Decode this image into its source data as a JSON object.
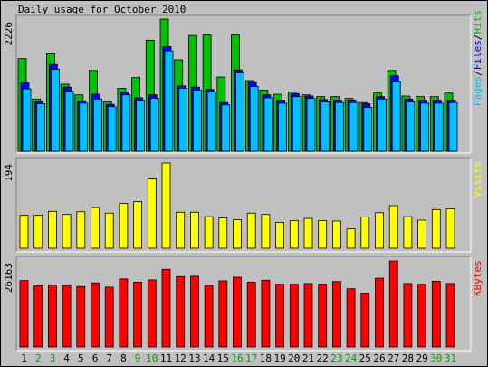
{
  "title": "Daily usage for October 2010",
  "colors": {
    "background": "#c0c0c0",
    "hits": "#00c000",
    "files": "#0000ff",
    "pages": "#00c0ff",
    "visits": "#ffff00",
    "kbytes": "#ff0000",
    "weekend_day": "#00a000"
  },
  "chart_data": [
    {
      "type": "bar",
      "name": "hits-files-pages",
      "y_tick": "2226",
      "ymax": 2226,
      "legend": [
        {
          "label": "Pages",
          "color": "#00c0ff"
        },
        {
          "label": "Files",
          "color": "#0000ff"
        },
        {
          "label": "Hits",
          "color": "#00c000"
        }
      ],
      "categories": [
        "1",
        "2",
        "3",
        "4",
        "5",
        "6",
        "7",
        "8",
        "9",
        "10",
        "11",
        "12",
        "13",
        "14",
        "15",
        "16",
        "17",
        "18",
        "19",
        "20",
        "21",
        "22",
        "23",
        "24",
        "25",
        "26",
        "27",
        "28",
        "29",
        "30",
        "31"
      ],
      "series": [
        {
          "name": "Hits",
          "values": [
            1560,
            880,
            1640,
            1130,
            950,
            1360,
            830,
            1060,
            1240,
            1870,
            2226,
            1540,
            1950,
            1960,
            1250,
            1960,
            1190,
            1030,
            960,
            1000,
            950,
            920,
            920,
            890,
            820,
            980,
            1360,
            930,
            920,
            920,
            980
          ]
        },
        {
          "name": "Files",
          "values": [
            1150,
            840,
            1460,
            1080,
            850,
            960,
            790,
            1000,
            900,
            950,
            1760,
            1100,
            1080,
            1040,
            820,
            1370,
            1170,
            950,
            860,
            970,
            930,
            870,
            860,
            860,
            800,
            920,
            1270,
            880,
            860,
            860,
            860
          ]
        },
        {
          "name": "Pages",
          "values": [
            1050,
            800,
            1380,
            1010,
            810,
            880,
            750,
            950,
            860,
            890,
            1690,
            1060,
            1030,
            1000,
            780,
            1320,
            1090,
            900,
            810,
            920,
            890,
            830,
            820,
            820,
            740,
            880,
            1180,
            830,
            810,
            810,
            820
          ]
        }
      ]
    },
    {
      "type": "bar",
      "name": "visits",
      "y_tick": "194",
      "ymax": 194,
      "legend": [
        {
          "label": "Visits",
          "color": "#ffff00"
        }
      ],
      "categories": [
        "1",
        "2",
        "3",
        "4",
        "5",
        "6",
        "7",
        "8",
        "9",
        "10",
        "11",
        "12",
        "13",
        "14",
        "15",
        "16",
        "17",
        "18",
        "19",
        "20",
        "21",
        "22",
        "23",
        "24",
        "25",
        "26",
        "27",
        "28",
        "29",
        "30",
        "31"
      ],
      "series": [
        {
          "name": "Visits",
          "values": [
            75,
            75,
            84,
            77,
            83,
            93,
            80,
            102,
            106,
            160,
            194,
            82,
            82,
            72,
            69,
            65,
            80,
            77,
            59,
            63,
            68,
            63,
            62,
            44,
            71,
            81,
            97,
            72,
            64,
            88,
            90
          ]
        }
      ]
    },
    {
      "type": "bar",
      "name": "kbytes",
      "y_tick": "26163",
      "ymax": 26163,
      "legend": [
        {
          "label": "KBytes",
          "color": "#ff0000"
        }
      ],
      "categories": [
        "1",
        "2",
        "3",
        "4",
        "5",
        "6",
        "7",
        "8",
        "9",
        "10",
        "11",
        "12",
        "13",
        "14",
        "15",
        "16",
        "17",
        "18",
        "19",
        "20",
        "21",
        "22",
        "23",
        "24",
        "25",
        "26",
        "27",
        "28",
        "29",
        "30",
        "31"
      ],
      "series": [
        {
          "name": "KBytes",
          "values": [
            20200,
            18600,
            18900,
            18700,
            18400,
            19500,
            18200,
            20700,
            19700,
            20400,
            23600,
            21400,
            21500,
            18700,
            20100,
            21200,
            19700,
            20300,
            19100,
            19100,
            19300,
            19100,
            19900,
            17700,
            16400,
            20900,
            26163,
            19300,
            19100,
            20000,
            19300
          ]
        }
      ]
    }
  ],
  "x_labels": [
    {
      "text": "1",
      "weekend": false
    },
    {
      "text": "2",
      "weekend": true
    },
    {
      "text": "3",
      "weekend": true
    },
    {
      "text": "4",
      "weekend": false
    },
    {
      "text": "5",
      "weekend": false
    },
    {
      "text": "6",
      "weekend": false
    },
    {
      "text": "7",
      "weekend": false
    },
    {
      "text": "8",
      "weekend": false
    },
    {
      "text": "9",
      "weekend": true
    },
    {
      "text": "10",
      "weekend": true
    },
    {
      "text": "11",
      "weekend": false
    },
    {
      "text": "12",
      "weekend": false
    },
    {
      "text": "13",
      "weekend": false
    },
    {
      "text": "14",
      "weekend": false
    },
    {
      "text": "15",
      "weekend": false
    },
    {
      "text": "16",
      "weekend": true
    },
    {
      "text": "17",
      "weekend": true
    },
    {
      "text": "18",
      "weekend": false
    },
    {
      "text": "19",
      "weekend": false
    },
    {
      "text": "20",
      "weekend": false
    },
    {
      "text": "21",
      "weekend": false
    },
    {
      "text": "22",
      "weekend": false
    },
    {
      "text": "23",
      "weekend": true
    },
    {
      "text": "24",
      "weekend": true
    },
    {
      "text": "25",
      "weekend": false
    },
    {
      "text": "26",
      "weekend": false
    },
    {
      "text": "27",
      "weekend": false
    },
    {
      "text": "28",
      "weekend": false
    },
    {
      "text": "29",
      "weekend": false
    },
    {
      "text": "30",
      "weekend": true
    },
    {
      "text": "31",
      "weekend": true
    }
  ]
}
